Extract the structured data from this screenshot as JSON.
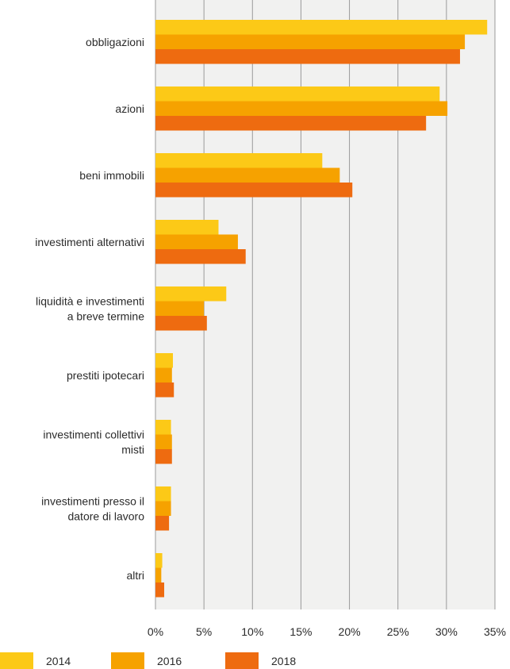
{
  "chart_data": {
    "type": "bar",
    "orientation": "horizontal",
    "categories": [
      "obbligazioni",
      "azioni",
      "beni immobili",
      "investimenti alternativi",
      "liquidità e investimenti a breve termine",
      "prestiti ipotecari",
      "investimenti collettivi misti",
      "investimenti presso il datore di lavoro",
      "altri"
    ],
    "category_lines": [
      [
        "obbligazioni"
      ],
      [
        "azioni"
      ],
      [
        "beni immobili"
      ],
      [
        "investimenti alternativi"
      ],
      [
        "liquidità e investimenti",
        "a breve termine"
      ],
      [
        "prestiti ipotecari"
      ],
      [
        "investimenti collettivi",
        "misti"
      ],
      [
        "investimenti presso il",
        "datore di lavoro"
      ],
      [
        "altri"
      ]
    ],
    "series": [
      {
        "name": "2014",
        "color": "#fcc917",
        "values": [
          34.2,
          29.3,
          17.2,
          6.5,
          7.3,
          1.8,
          1.6,
          1.6,
          0.7
        ]
      },
      {
        "name": "2016",
        "color": "#f6a200",
        "values": [
          31.9,
          30.1,
          19.0,
          8.5,
          5.0,
          1.7,
          1.7,
          1.6,
          0.6
        ]
      },
      {
        "name": "2018",
        "color": "#ee6b10",
        "values": [
          31.4,
          27.9,
          20.3,
          9.3,
          5.3,
          1.9,
          1.7,
          1.4,
          0.9
        ]
      }
    ],
    "xlim": [
      0,
      35
    ],
    "xticks": [
      0,
      5,
      10,
      15,
      20,
      25,
      30,
      35
    ],
    "tick_labels": [
      "0%",
      "5%",
      "10%",
      "15%",
      "20%",
      "25%",
      "30%",
      "35%"
    ],
    "grid": true,
    "plot_background": "#f1f1f0",
    "grid_color": "#9a9a9a",
    "legend": "bottom",
    "title": "",
    "xlabel": "",
    "ylabel": ""
  }
}
